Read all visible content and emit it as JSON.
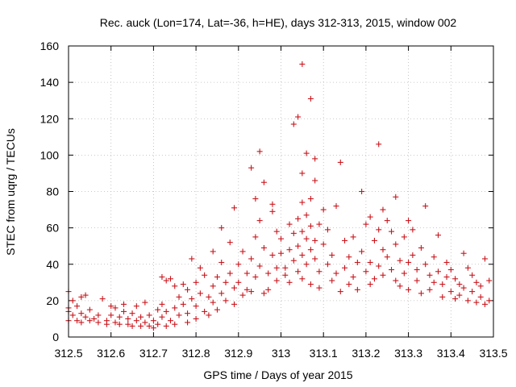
{
  "chart_data": {
    "type": "scatter",
    "title": "Rec. auck (Lon=174, Lat=-36, h=HE), days 312-313, 2015, window 002",
    "xlabel": "GPS time / Days of year 2015",
    "ylabel": "STEC from uqrg / TECUs",
    "xlim": [
      312.5,
      313.5
    ],
    "ylim": [
      0,
      160
    ],
    "xticks": [
      "312.5",
      "312.6",
      "312.7",
      "312.8",
      "312.9",
      "313",
      "313.1",
      "313.2",
      "313.3",
      "313.4",
      "313.5"
    ],
    "yticks": [
      "0",
      "20",
      "40",
      "60",
      "80",
      "100",
      "120",
      "140",
      "160"
    ],
    "grid": true,
    "marker": "plus",
    "color": "#c8161d",
    "points": [
      [
        312.5,
        25
      ],
      [
        312.5,
        16
      ],
      [
        312.5,
        14
      ],
      [
        312.5,
        9
      ],
      [
        312.51,
        20
      ],
      [
        312.51,
        12
      ],
      [
        312.52,
        9
      ],
      [
        312.52,
        17
      ],
      [
        312.53,
        22
      ],
      [
        312.53,
        13
      ],
      [
        312.53,
        8
      ],
      [
        312.54,
        23
      ],
      [
        312.54,
        11
      ],
      [
        312.55,
        9
      ],
      [
        312.55,
        15
      ],
      [
        312.56,
        10
      ],
      [
        312.57,
        8
      ],
      [
        312.57,
        12
      ],
      [
        312.58,
        21
      ],
      [
        312.59,
        9
      ],
      [
        312.59,
        7
      ],
      [
        312.6,
        17
      ],
      [
        312.6,
        12
      ],
      [
        312.61,
        8
      ],
      [
        312.61,
        16
      ],
      [
        312.62,
        7
      ],
      [
        312.62,
        11
      ],
      [
        312.63,
        14
      ],
      [
        312.63,
        18
      ],
      [
        312.64,
        7
      ],
      [
        312.64,
        10
      ],
      [
        312.65,
        6
      ],
      [
        312.65,
        13
      ],
      [
        312.66,
        17
      ],
      [
        312.66,
        9
      ],
      [
        312.67,
        6
      ],
      [
        312.67,
        11
      ],
      [
        312.68,
        19
      ],
      [
        312.68,
        8
      ],
      [
        312.69,
        6
      ],
      [
        312.69,
        12
      ],
      [
        312.7,
        5
      ],
      [
        312.7,
        9
      ],
      [
        312.71,
        15
      ],
      [
        312.71,
        7
      ],
      [
        312.72,
        33
      ],
      [
        312.72,
        18
      ],
      [
        312.72,
        11
      ],
      [
        312.73,
        6
      ],
      [
        312.73,
        31
      ],
      [
        312.73,
        14
      ],
      [
        312.74,
        32
      ],
      [
        312.74,
        9
      ],
      [
        312.75,
        28
      ],
      [
        312.75,
        16
      ],
      [
        312.75,
        7
      ],
      [
        312.76,
        22
      ],
      [
        312.76,
        12
      ],
      [
        312.77,
        29
      ],
      [
        312.77,
        18
      ],
      [
        312.78,
        8
      ],
      [
        312.78,
        26
      ],
      [
        312.78,
        13
      ],
      [
        312.79,
        43
      ],
      [
        312.79,
        21
      ],
      [
        312.8,
        10
      ],
      [
        312.8,
        30
      ],
      [
        312.8,
        17
      ],
      [
        312.81,
        38
      ],
      [
        312.81,
        24
      ],
      [
        312.82,
        14
      ],
      [
        312.82,
        34
      ],
      [
        312.83,
        22
      ],
      [
        312.83,
        12
      ],
      [
        312.84,
        47
      ],
      [
        312.84,
        28
      ],
      [
        312.84,
        19
      ],
      [
        312.85,
        33
      ],
      [
        312.85,
        15
      ],
      [
        312.86,
        60
      ],
      [
        312.86,
        41
      ],
      [
        312.86,
        24
      ],
      [
        312.87,
        30
      ],
      [
        312.87,
        20
      ],
      [
        312.88,
        52
      ],
      [
        312.88,
        35
      ],
      [
        312.89,
        27
      ],
      [
        312.89,
        71
      ],
      [
        312.89,
        18
      ],
      [
        312.9,
        40
      ],
      [
        312.9,
        30
      ],
      [
        312.91,
        23
      ],
      [
        312.91,
        47
      ],
      [
        312.92,
        35
      ],
      [
        312.92,
        26
      ],
      [
        312.93,
        93
      ],
      [
        312.93,
        43
      ],
      [
        312.93,
        25
      ],
      [
        312.94,
        76
      ],
      [
        312.94,
        55
      ],
      [
        312.94,
        33
      ],
      [
        312.95,
        102
      ],
      [
        312.95,
        64
      ],
      [
        312.95,
        39
      ],
      [
        312.96,
        24
      ],
      [
        312.96,
        85
      ],
      [
        312.96,
        49
      ],
      [
        312.97,
        35
      ],
      [
        312.97,
        26
      ],
      [
        312.98,
        73
      ],
      [
        312.98,
        69
      ],
      [
        312.98,
        45
      ],
      [
        312.99,
        31
      ],
      [
        312.99,
        58
      ],
      [
        312.99,
        38
      ],
      [
        313.0,
        54
      ],
      [
        313.0,
        46
      ],
      [
        313.01,
        38
      ],
      [
        313.01,
        34
      ],
      [
        313.02,
        62
      ],
      [
        313.02,
        48
      ],
      [
        313.02,
        30
      ],
      [
        313.03,
        117
      ],
      [
        313.03,
        57
      ],
      [
        313.03,
        42
      ],
      [
        313.04,
        121
      ],
      [
        313.04,
        65
      ],
      [
        313.04,
        50
      ],
      [
        313.04,
        36
      ],
      [
        313.05,
        150
      ],
      [
        313.05,
        90
      ],
      [
        313.05,
        74
      ],
      [
        313.05,
        58
      ],
      [
        313.05,
        45
      ],
      [
        313.05,
        32
      ],
      [
        313.06,
        101
      ],
      [
        313.06,
        67
      ],
      [
        313.06,
        54
      ],
      [
        313.06,
        40
      ],
      [
        313.07,
        131
      ],
      [
        313.07,
        76
      ],
      [
        313.07,
        61
      ],
      [
        313.07,
        48
      ],
      [
        313.07,
        29
      ],
      [
        313.08,
        98
      ],
      [
        313.08,
        86
      ],
      [
        313.08,
        53
      ],
      [
        313.08,
        43
      ],
      [
        313.09,
        62
      ],
      [
        313.09,
        36
      ],
      [
        313.09,
        27
      ],
      [
        313.1,
        70
      ],
      [
        313.1,
        51
      ],
      [
        313.11,
        59
      ],
      [
        313.11,
        40
      ],
      [
        313.12,
        45
      ],
      [
        313.12,
        31
      ],
      [
        313.13,
        72
      ],
      [
        313.13,
        35
      ],
      [
        313.14,
        96
      ],
      [
        313.14,
        25
      ],
      [
        313.15,
        53
      ],
      [
        313.15,
        38
      ],
      [
        313.16,
        44
      ],
      [
        313.16,
        29
      ],
      [
        313.17,
        55
      ],
      [
        313.17,
        33
      ],
      [
        313.18,
        41
      ],
      [
        313.18,
        26
      ],
      [
        313.19,
        80
      ],
      [
        313.19,
        47
      ],
      [
        313.2,
        62
      ],
      [
        313.2,
        36
      ],
      [
        313.21,
        66
      ],
      [
        313.21,
        41
      ],
      [
        313.21,
        29
      ],
      [
        313.22,
        53
      ],
      [
        313.22,
        32
      ],
      [
        313.23,
        106
      ],
      [
        313.23,
        59
      ],
      [
        313.23,
        39
      ],
      [
        313.24,
        70
      ],
      [
        313.24,
        48
      ],
      [
        313.24,
        34
      ],
      [
        313.25,
        64
      ],
      [
        313.25,
        44
      ],
      [
        313.26,
        58
      ],
      [
        313.26,
        37
      ],
      [
        313.27,
        77
      ],
      [
        313.27,
        51
      ],
      [
        313.27,
        31
      ],
      [
        313.28,
        42
      ],
      [
        313.28,
        28
      ],
      [
        313.29,
        55
      ],
      [
        313.29,
        35
      ],
      [
        313.3,
        64
      ],
      [
        313.3,
        41
      ],
      [
        313.3,
        26
      ],
      [
        313.31,
        59
      ],
      [
        313.31,
        45
      ],
      [
        313.32,
        37
      ],
      [
        313.32,
        31
      ],
      [
        313.33,
        49
      ],
      [
        313.33,
        24
      ],
      [
        313.34,
        72
      ],
      [
        313.34,
        40
      ],
      [
        313.35,
        34
      ],
      [
        313.35,
        26
      ],
      [
        313.36,
        44
      ],
      [
        313.36,
        30
      ],
      [
        313.37,
        56
      ],
      [
        313.37,
        36
      ],
      [
        313.38,
        29
      ],
      [
        313.38,
        22
      ],
      [
        313.39,
        41
      ],
      [
        313.39,
        33
      ],
      [
        313.4,
        37
      ],
      [
        313.4,
        25
      ],
      [
        313.41,
        32
      ],
      [
        313.41,
        21
      ],
      [
        313.42,
        29
      ],
      [
        313.42,
        23
      ],
      [
        313.43,
        46
      ],
      [
        313.43,
        27
      ],
      [
        313.44,
        38
      ],
      [
        313.44,
        20
      ],
      [
        313.45,
        34
      ],
      [
        313.45,
        25
      ],
      [
        313.46,
        30
      ],
      [
        313.46,
        19
      ],
      [
        313.47,
        28
      ],
      [
        313.47,
        22
      ],
      [
        313.48,
        43
      ],
      [
        313.48,
        18
      ],
      [
        313.49,
        31
      ],
      [
        313.49,
        20
      ]
    ]
  }
}
